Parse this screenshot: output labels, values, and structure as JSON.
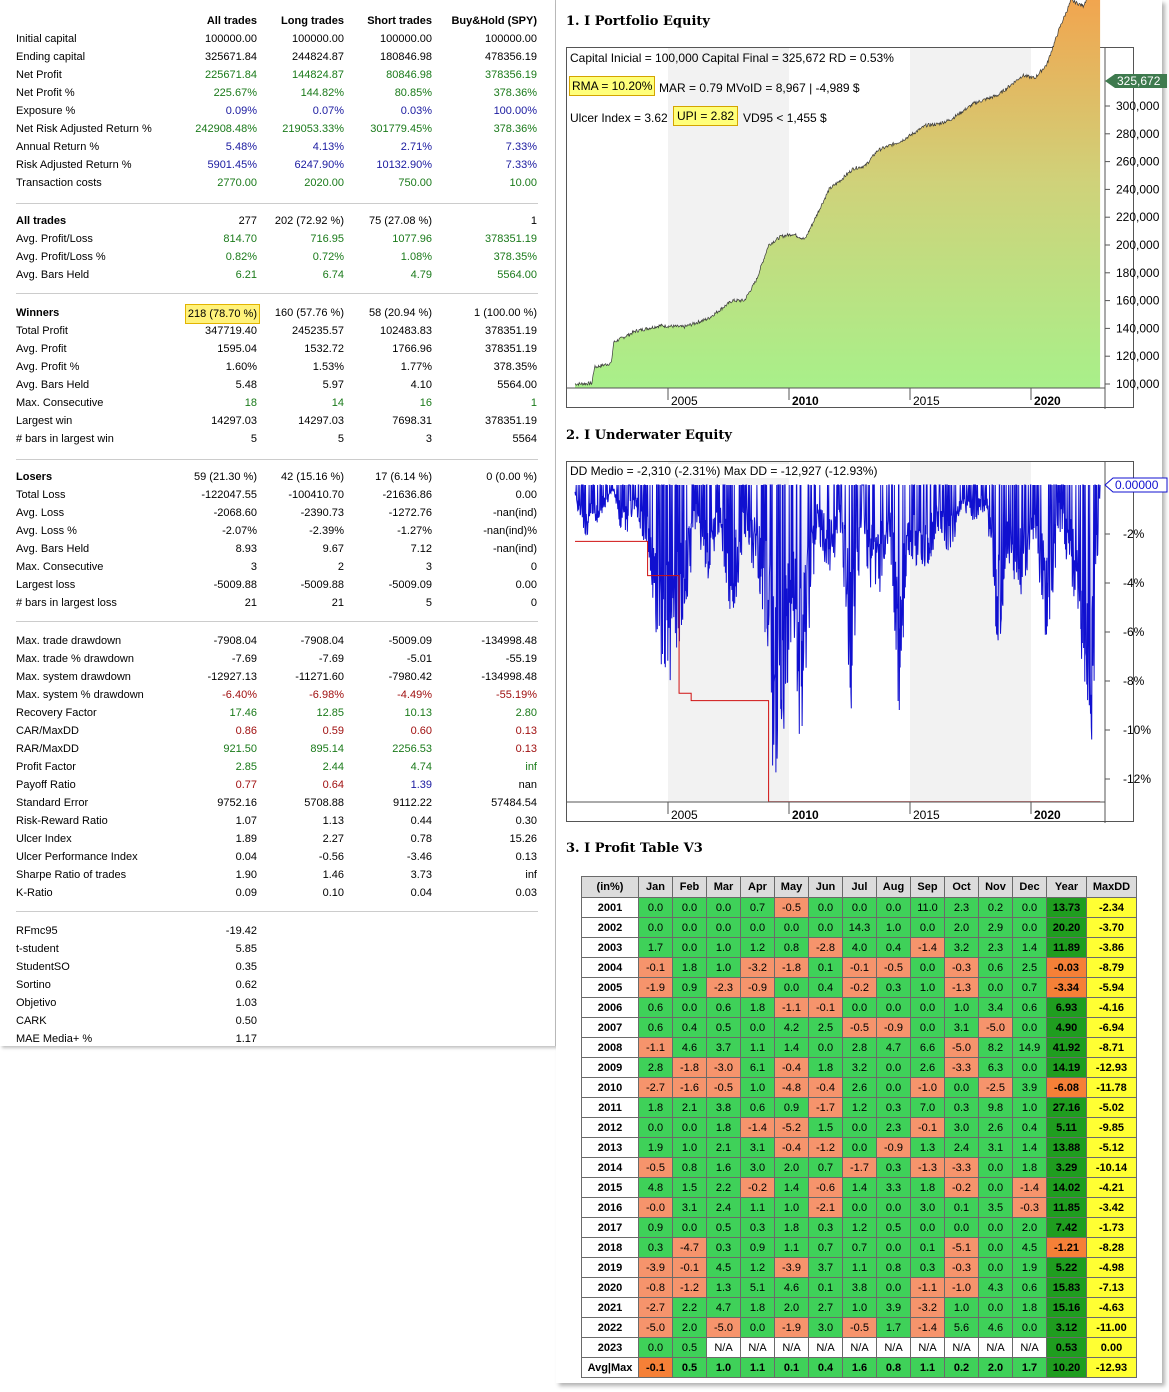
{
  "stats": {
    "columns": [
      "All trades",
      "Long trades",
      "Short trades",
      "Buy&Hold (SPY)"
    ],
    "rows": [
      {
        "label": "Initial capital",
        "v": [
          "100000.00",
          "100000.00",
          "100000.00",
          "100000.00"
        ],
        "color": "k",
        "top": 30
      },
      {
        "label": "Ending capital",
        "v": [
          "325671.84",
          "244824.87",
          "180846.98",
          "478356.19"
        ],
        "color": "k",
        "top": 48
      },
      {
        "label": "Net Profit",
        "v": [
          "225671.84",
          "144824.87",
          "80846.98",
          "378356.19"
        ],
        "color": "g",
        "top": 66
      },
      {
        "label": "Net Profit %",
        "v": [
          "225.67%",
          "144.82%",
          "80.85%",
          "378.36%"
        ],
        "color": "g",
        "top": 84
      },
      {
        "label": "Exposure %",
        "v": [
          "0.09%",
          "0.07%",
          "0.03%",
          "100.00%"
        ],
        "color": "b",
        "top": 102
      },
      {
        "label": "Net Risk Adjusted Return %",
        "v": [
          "242908.48%",
          "219053.33%",
          "301779.45%",
          "378.36%"
        ],
        "color": "g",
        "top": 120
      },
      {
        "label": "Annual Return %",
        "v": [
          "5.48%",
          "4.13%",
          "2.71%",
          "7.33%"
        ],
        "color": "b",
        "top": 138
      },
      {
        "label": "Risk Adjusted Return %",
        "v": [
          "5901.45%",
          "6247.90%",
          "10132.90%",
          "7.33%"
        ],
        "color": "b",
        "top": 156
      },
      {
        "label": "Transaction costs",
        "v": [
          "2770.00",
          "2020.00",
          "750.00",
          "10.00"
        ],
        "color": "g",
        "top": 174
      },
      {
        "label": "All trades",
        "v": [
          "277",
          "202 (72.92 %)",
          "75 (27.08 %)",
          "1"
        ],
        "color": "k",
        "top": 212,
        "bold": true
      },
      {
        "label": " Avg. Profit/Loss",
        "v": [
          "814.70",
          "716.95",
          "1077.96",
          "378351.19"
        ],
        "color": "g",
        "top": 230
      },
      {
        "label": " Avg. Profit/Loss %",
        "v": [
          "0.82%",
          "0.72%",
          "1.08%",
          "378.35%"
        ],
        "color": "g",
        "top": 248
      },
      {
        "label": " Avg. Bars Held",
        "v": [
          "6.21",
          "6.74",
          "4.79",
          "5564.00"
        ],
        "color": "g",
        "top": 266
      },
      {
        "label": "Winners",
        "v": [
          "218 (78.70 %)",
          "160 (57.76 %)",
          "58 (20.94 %)",
          "1 (100.00 %)"
        ],
        "color": "k",
        "top": 304,
        "bold": true,
        "hl": true
      },
      {
        "label": " Total Profit",
        "v": [
          "347719.40",
          "245235.57",
          "102483.83",
          "378351.19"
        ],
        "color": "k",
        "top": 322
      },
      {
        "label": " Avg. Profit",
        "v": [
          "1595.04",
          "1532.72",
          "1766.96",
          "378351.19"
        ],
        "color": "k",
        "top": 340
      },
      {
        "label": " Avg. Profit %",
        "v": [
          "1.60%",
          "1.53%",
          "1.77%",
          "378.35%"
        ],
        "color": "k",
        "top": 358
      },
      {
        "label": " Avg. Bars Held",
        "v": [
          "5.48",
          "5.97",
          "4.10",
          "5564.00"
        ],
        "color": "k",
        "top": 376
      },
      {
        "label": " Max. Consecutive",
        "v": [
          "18",
          "14",
          "16",
          "1"
        ],
        "color": "g",
        "top": 394
      },
      {
        "label": " Largest win",
        "v": [
          "14297.03",
          "14297.03",
          "7698.31",
          "378351.19"
        ],
        "color": "k",
        "top": 412
      },
      {
        "label": " # bars in largest win",
        "v": [
          "5",
          "5",
          "3",
          "5564"
        ],
        "color": "k",
        "top": 430
      },
      {
        "label": "Losers",
        "v": [
          "59 (21.30 %)",
          "42 (15.16 %)",
          "17 (6.14 %)",
          "0 (0.00 %)"
        ],
        "color": "k",
        "top": 468,
        "bold": true
      },
      {
        "label": " Total Loss",
        "v": [
          "-122047.55",
          "-100410.70",
          "-21636.86",
          "0.00"
        ],
        "color": "k",
        "top": 486
      },
      {
        "label": " Avg. Loss",
        "v": [
          "-2068.60",
          "-2390.73",
          "-1272.76",
          "-nan(ind)"
        ],
        "color": "k",
        "top": 504
      },
      {
        "label": " Avg. Loss %",
        "v": [
          "-2.07%",
          "-2.39%",
          "-1.27%",
          "-nan(ind)%"
        ],
        "color": "k",
        "top": 522
      },
      {
        "label": " Avg. Bars Held",
        "v": [
          "8.93",
          "9.67",
          "7.12",
          "-nan(ind)"
        ],
        "color": "k",
        "top": 540
      },
      {
        "label": " Max. Consecutive",
        "v": [
          "3",
          "2",
          "3",
          "0"
        ],
        "color": "k",
        "top": 558
      },
      {
        "label": " Largest loss",
        "v": [
          "-5009.88",
          "-5009.88",
          "-5009.09",
          "0.00"
        ],
        "color": "k",
        "top": 576
      },
      {
        "label": " # bars in largest loss",
        "v": [
          "21",
          "21",
          "5",
          "0"
        ],
        "color": "k",
        "top": 594
      },
      {
        "label": "Max. trade drawdown",
        "v": [
          "-7908.04",
          "-7908.04",
          "-5009.09",
          "-134998.48"
        ],
        "color": "k",
        "top": 632
      },
      {
        "label": "Max. trade % drawdown",
        "v": [
          "-7.69",
          "-7.69",
          "-5.01",
          "-55.19"
        ],
        "color": "k",
        "top": 650
      },
      {
        "label": "Max. system drawdown",
        "v": [
          "-12927.13",
          "-11271.60",
          "-7980.42",
          "-134998.48"
        ],
        "color": "k",
        "top": 668
      },
      {
        "label": "Max. system % drawdown",
        "v": [
          "-6.40%",
          "-6.98%",
          "-4.49%",
          "-55.19%"
        ],
        "color": "r",
        "top": 686
      },
      {
        "label": "Recovery Factor",
        "v": [
          "17.46",
          "12.85",
          "10.13",
          "2.80"
        ],
        "color": "g",
        "top": 704
      },
      {
        "label": "CAR/MaxDD",
        "v": [
          "0.86",
          "0.59",
          "0.60",
          "0.13"
        ],
        "color": "r",
        "top": 722
      },
      {
        "label": "RAR/MaxDD",
        "v": [
          "921.50",
          "895.14",
          "2256.53",
          "0.13"
        ],
        "color": "g",
        "top": 740,
        "lastred": true
      },
      {
        "label": "Profit Factor",
        "v": [
          "2.85",
          "2.44",
          "4.74",
          "inf"
        ],
        "color": "g",
        "top": 758
      },
      {
        "label": "Payoff Ratio",
        "v": [
          "0.77",
          "0.64",
          "1.39",
          "nan"
        ],
        "color": "r",
        "top": 776,
        "payoff": true
      },
      {
        "label": "Standard Error",
        "v": [
          "9752.16",
          "5708.88",
          "9112.22",
          "57484.54"
        ],
        "color": "k",
        "top": 794
      },
      {
        "label": "Risk-Reward Ratio",
        "v": [
          "1.07",
          "1.13",
          "0.44",
          "0.30"
        ],
        "color": "k",
        "top": 812
      },
      {
        "label": "Ulcer Index",
        "v": [
          "1.89",
          "2.27",
          "0.78",
          "15.26"
        ],
        "color": "k",
        "top": 830
      },
      {
        "label": "Ulcer Performance Index",
        "v": [
          "0.04",
          "-0.56",
          "-3.46",
          "0.13"
        ],
        "color": "k",
        "top": 848
      },
      {
        "label": "Sharpe Ratio of trades",
        "v": [
          "1.90",
          "1.46",
          "3.73",
          "inf"
        ],
        "color": "k",
        "top": 866
      },
      {
        "label": "K-Ratio",
        "v": [
          "0.09",
          "0.10",
          "0.04",
          "0.03"
        ],
        "color": "k",
        "top": 884
      },
      {
        "label": "RFmc95",
        "v": [
          "-19.42",
          "",
          "",
          ""
        ],
        "color": "k",
        "top": 922
      },
      {
        "label": "t-student",
        "v": [
          "5.85",
          "",
          "",
          ""
        ],
        "color": "k",
        "top": 940
      },
      {
        "label": "StudentSO",
        "v": [
          "0.35",
          "",
          "",
          ""
        ],
        "color": "k",
        "top": 958
      },
      {
        "label": "Sortino",
        "v": [
          "0.62",
          "",
          "",
          ""
        ],
        "color": "k",
        "top": 976
      },
      {
        "label": "Objetivo",
        "v": [
          "1.03",
          "",
          "",
          ""
        ],
        "color": "k",
        "top": 994
      },
      {
        "label": "CARK",
        "v": [
          "0.50",
          "",
          "",
          ""
        ],
        "color": "k",
        "top": 1012
      },
      {
        "label": "MAE Media+ %",
        "v": [
          "1.17",
          "",
          "",
          ""
        ],
        "color": "k",
        "top": 1030
      }
    ]
  },
  "equity": {
    "title": "1. I Portfolio Equity",
    "line1": "Capital Inicial = 100,000  Capital Final = 325,672   RD = 0.53%",
    "rma": "RMA = 10.20%",
    "line2": "MAR = 0.79   MVoID = 8,967 | -4,989 $",
    "line3a": "Ulcer Index = 3.62",
    "upi": "UPI = 2.82",
    "line3b": "VD95 < 1,455 $",
    "last_label": "325,672",
    "yticks": [
      "300,000",
      "280,000",
      "260,000",
      "240,000",
      "220,000",
      "200,000",
      "180,000",
      "160,000",
      "140,000",
      "120,000",
      "100,000"
    ],
    "xticks": [
      "2005",
      "2010",
      "2015",
      "2020"
    ]
  },
  "underwater": {
    "title": "2. I Underwater Equity",
    "line1": "DD Medio = -2,310 (-2.31%)       Max DD = -12,927 (-12.93%)",
    "last_label": "0.00000",
    "yticks": [
      "-2%",
      "-4%",
      "-6%",
      "-8%",
      "-10%",
      "-12%"
    ],
    "xticks": [
      "2005",
      "2010",
      "2015",
      "2020"
    ]
  },
  "profit": {
    "title": "3. I Profit Table V3",
    "headers": [
      "(in%)",
      "Jan",
      "Feb",
      "Mar",
      "Apr",
      "May",
      "Jun",
      "Jul",
      "Aug",
      "Sep",
      "Oct",
      "Nov",
      "Dec",
      "Year",
      "MaxDD"
    ],
    "rows": [
      [
        "2001",
        "0.0",
        "0.0",
        "0.0",
        "0.7",
        "-0.5",
        "0.0",
        "0.0",
        "0.0",
        "11.0",
        "2.3",
        "0.2",
        "0.0",
        "13.73",
        "-2.34"
      ],
      [
        "2002",
        "0.0",
        "0.0",
        "0.0",
        "0.0",
        "0.0",
        "0.0",
        "14.3",
        "1.0",
        "0.0",
        "2.0",
        "2.9",
        "0.0",
        "20.20",
        "-3.70"
      ],
      [
        "2003",
        "1.7",
        "0.0",
        "1.0",
        "1.2",
        "0.8",
        "-2.8",
        "4.0",
        "0.4",
        "-1.4",
        "3.2",
        "2.3",
        "1.4",
        "11.89",
        "-3.86"
      ],
      [
        "2004",
        "-0.1",
        "1.8",
        "1.0",
        "-3.2",
        "-1.8",
        "0.1",
        "-0.1",
        "-0.5",
        "0.0",
        "-0.3",
        "0.6",
        "2.5",
        "-0.03",
        "-8.79"
      ],
      [
        "2005",
        "-1.9",
        "0.9",
        "-2.3",
        "-0.9",
        "0.0",
        "0.4",
        "-0.2",
        "0.3",
        "1.0",
        "-1.3",
        "0.0",
        "0.7",
        "-3.34",
        "-5.94"
      ],
      [
        "2006",
        "0.6",
        "0.0",
        "0.6",
        "1.8",
        "-1.1",
        "-0.1",
        "0.0",
        "0.0",
        "0.0",
        "1.0",
        "3.4",
        "0.6",
        "6.93",
        "-4.16"
      ],
      [
        "2007",
        "0.6",
        "0.4",
        "0.5",
        "0.0",
        "4.2",
        "2.5",
        "-0.5",
        "-0.9",
        "0.0",
        "3.1",
        "-5.0",
        "0.0",
        "4.90",
        "-6.94"
      ],
      [
        "2008",
        "-1.1",
        "4.6",
        "3.7",
        "1.1",
        "1.4",
        "0.0",
        "2.8",
        "4.7",
        "6.6",
        "-5.0",
        "8.2",
        "14.9",
        "41.92",
        "-8.71"
      ],
      [
        "2009",
        "2.8",
        "-1.8",
        "-3.0",
        "6.1",
        "-0.4",
        "1.8",
        "3.2",
        "0.0",
        "2.6",
        "-3.3",
        "6.3",
        "0.0",
        "14.19",
        "-12.93"
      ],
      [
        "2010",
        "-2.7",
        "-1.6",
        "-0.5",
        "1.0",
        "-4.8",
        "-0.4",
        "2.6",
        "0.0",
        "-1.0",
        "0.0",
        "-2.5",
        "3.9",
        "-6.08",
        "-11.78"
      ],
      [
        "2011",
        "1.8",
        "2.1",
        "3.8",
        "0.6",
        "0.9",
        "-1.7",
        "1.2",
        "0.3",
        "7.0",
        "0.3",
        "9.8",
        "1.0",
        "27.16",
        "-5.02"
      ],
      [
        "2012",
        "0.0",
        "0.0",
        "1.8",
        "-1.4",
        "-5.2",
        "1.5",
        "0.0",
        "2.3",
        "-0.1",
        "3.0",
        "2.6",
        "0.4",
        "5.11",
        "-9.85"
      ],
      [
        "2013",
        "1.9",
        "1.0",
        "2.1",
        "3.1",
        "-0.4",
        "-1.2",
        "0.0",
        "-0.9",
        "1.3",
        "2.4",
        "3.1",
        "1.4",
        "13.88",
        "-5.12"
      ],
      [
        "2014",
        "-0.5",
        "0.8",
        "1.6",
        "3.0",
        "2.0",
        "0.7",
        "-1.7",
        "0.3",
        "-1.3",
        "-3.3",
        "0.0",
        "1.8",
        "3.29",
        "-10.14"
      ],
      [
        "2015",
        "4.8",
        "1.5",
        "2.2",
        "-0.2",
        "1.4",
        "-0.6",
        "1.4",
        "3.3",
        "1.8",
        "-0.2",
        "0.0",
        "-1.4",
        "14.02",
        "-4.21"
      ],
      [
        "2016",
        "-0.0",
        "3.1",
        "2.4",
        "1.1",
        "1.0",
        "-2.1",
        "0.0",
        "0.0",
        "3.0",
        "0.1",
        "3.5",
        "-0.3",
        "11.85",
        "-3.42"
      ],
      [
        "2017",
        "0.9",
        "0.0",
        "0.5",
        "0.3",
        "1.8",
        "0.3",
        "1.2",
        "0.5",
        "0.0",
        "0.0",
        "0.0",
        "2.0",
        "7.42",
        "-1.73"
      ],
      [
        "2018",
        "0.3",
        "-4.7",
        "0.3",
        "0.9",
        "1.1",
        "0.7",
        "0.7",
        "0.0",
        "0.1",
        "-5.1",
        "0.0",
        "4.5",
        "-1.21",
        "-8.28"
      ],
      [
        "2019",
        "-3.9",
        "-0.1",
        "4.5",
        "1.2",
        "-3.9",
        "3.7",
        "1.1",
        "0.8",
        "0.3",
        "-0.3",
        "0.0",
        "1.9",
        "5.22",
        "-4.98"
      ],
      [
        "2020",
        "-0.8",
        "-1.2",
        "1.3",
        "5.1",
        "4.6",
        "0.1",
        "3.8",
        "0.0",
        "-1.1",
        "-1.0",
        "4.3",
        "0.6",
        "15.83",
        "-7.13"
      ],
      [
        "2021",
        "-2.7",
        "2.2",
        "4.7",
        "1.8",
        "2.0",
        "2.7",
        "1.0",
        "3.9",
        "-3.2",
        "1.0",
        "0.0",
        "1.8",
        "15.16",
        "-4.63"
      ],
      [
        "2022",
        "-5.0",
        "2.0",
        "-5.0",
        "0.0",
        "-1.9",
        "3.0",
        "-0.5",
        "1.7",
        "-1.4",
        "5.6",
        "4.6",
        "0.0",
        "3.12",
        "-11.00"
      ],
      [
        "2023",
        "0.0",
        "0.5",
        "N/A",
        "N/A",
        "N/A",
        "N/A",
        "N/A",
        "N/A",
        "N/A",
        "N/A",
        "N/A",
        "N/A",
        "0.53",
        "0.00"
      ]
    ],
    "avg": [
      "Avg|Max",
      "-0.1",
      "0.5",
      "1.0",
      "1.1",
      "0.1",
      "0.4",
      "1.6",
      "0.8",
      "1.1",
      "0.2",
      "2.0",
      "1.7",
      "10.20",
      "-12.93"
    ]
  }
}
